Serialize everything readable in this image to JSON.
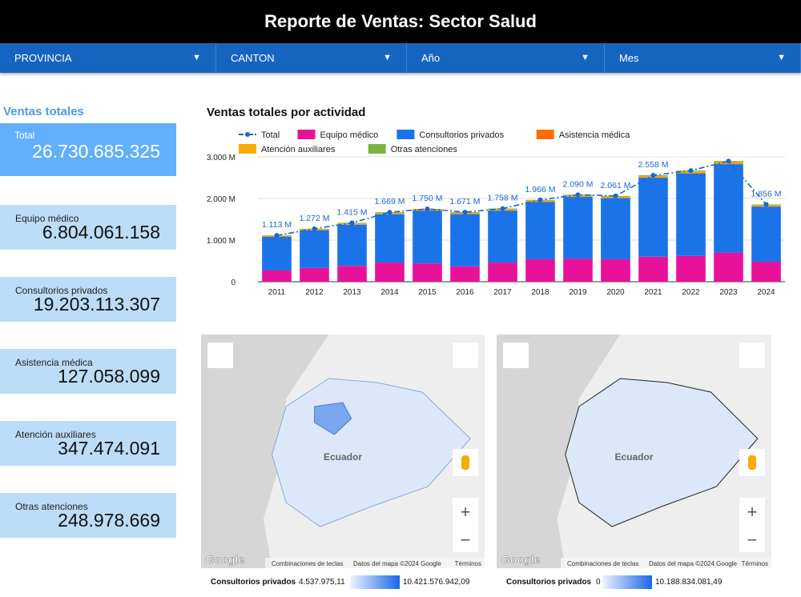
{
  "header": {
    "title": "Reporte de Ventas: Sector Salud"
  },
  "filters": [
    "PROVINCIA",
    "CANTON",
    "Año",
    "Mes"
  ],
  "kpis": {
    "title": "Ventas totales",
    "cards": [
      {
        "label": "Total",
        "value": "26.730.685.325"
      },
      {
        "label": "Equipo médico",
        "value": "6.804.061.158"
      },
      {
        "label": "Consultorios privados",
        "value": "19.203.113.307"
      },
      {
        "label": "Asistencia médica",
        "value": "127.058.099"
      },
      {
        "label": "Atención auxiliares",
        "value": "347.474.091"
      },
      {
        "label": "Otras atenciones",
        "value": "248.978.669"
      }
    ]
  },
  "chart_data": {
    "type": "bar",
    "stacked": true,
    "title": "Ventas totales por actividad",
    "categories": [
      "2011",
      "2012",
      "2013",
      "2014",
      "2015",
      "2016",
      "2017",
      "2018",
      "2019",
      "2020",
      "2021",
      "2022",
      "2023",
      "2024"
    ],
    "series": [
      {
        "name": "Total",
        "style": "line",
        "color": "#1a66d2",
        "values": [
          1113,
          1272,
          1415,
          1669,
          1750,
          1671,
          1758,
          1966,
          2090,
          2061,
          2558,
          2670,
          2900,
          1856
        ],
        "value_labels": [
          "1.113 M",
          "1.272 M",
          "1.415 M",
          "1.669 M",
          "1.750 M",
          "1.671 M",
          "1.758 M",
          "1.966 M",
          "2.090 M",
          "2.061 M",
          "2.558 M",
          null,
          null,
          "1.856 M"
        ]
      },
      {
        "name": "Equipo médico",
        "style": "bar",
        "color": "#e8129a",
        "values": [
          270,
          330,
          380,
          460,
          440,
          370,
          460,
          540,
          550,
          540,
          600,
          620,
          700,
          480
        ]
      },
      {
        "name": "Consultorios privados",
        "style": "bar",
        "color": "#1a73e8",
        "values": [
          808,
          902,
          991,
          1162,
          1262,
          1253,
          1248,
          1373,
          1487,
          1468,
          1898,
          1983,
          2125,
          1325
        ]
      },
      {
        "name": "Asistencia médica",
        "style": "bar",
        "color": "#ff6d00",
        "values": [
          8,
          8,
          9,
          9,
          9,
          9,
          9,
          9,
          9,
          9,
          10,
          10,
          10,
          10
        ]
      },
      {
        "name": "Atención auxiliares",
        "style": "bar",
        "color": "#f9ab00",
        "values": [
          15,
          18,
          20,
          22,
          22,
          22,
          23,
          25,
          25,
          25,
          30,
          35,
          40,
          25
        ]
      },
      {
        "name": "Otras atenciones",
        "style": "bar",
        "color": "#7cb342",
        "values": [
          12,
          14,
          15,
          16,
          17,
          17,
          18,
          19,
          19,
          19,
          20,
          22,
          25,
          16
        ]
      }
    ],
    "ylim": [
      0,
      3000
    ],
    "yticks": [
      0,
      {
        "value": 1000,
        "label": "1.000 M"
      },
      {
        "value": 2000,
        "label": "2.000 M"
      },
      {
        "value": 3000,
        "label": "3.000 M"
      }
    ],
    "grid": true
  },
  "maps": [
    {
      "place": "Ecuador",
      "attribution": "Google",
      "shortcuts": "Combinaciones de teclas",
      "data": "Datos del mapa ©2024 Google",
      "terms": "Términos",
      "legend": {
        "metric": "Consultorios privados",
        "min": "4.537.975,11",
        "max": "10.421.576.942,09"
      }
    },
    {
      "place": "Ecuador",
      "attribution": "Google",
      "shortcuts": "Combinaciones de teclas",
      "data": "Datos del mapa ©2024 Google",
      "terms": "Términos",
      "legend": {
        "metric": "Consultorios privados",
        "min": "0",
        "max": "10.188.834.081,49"
      }
    }
  ]
}
